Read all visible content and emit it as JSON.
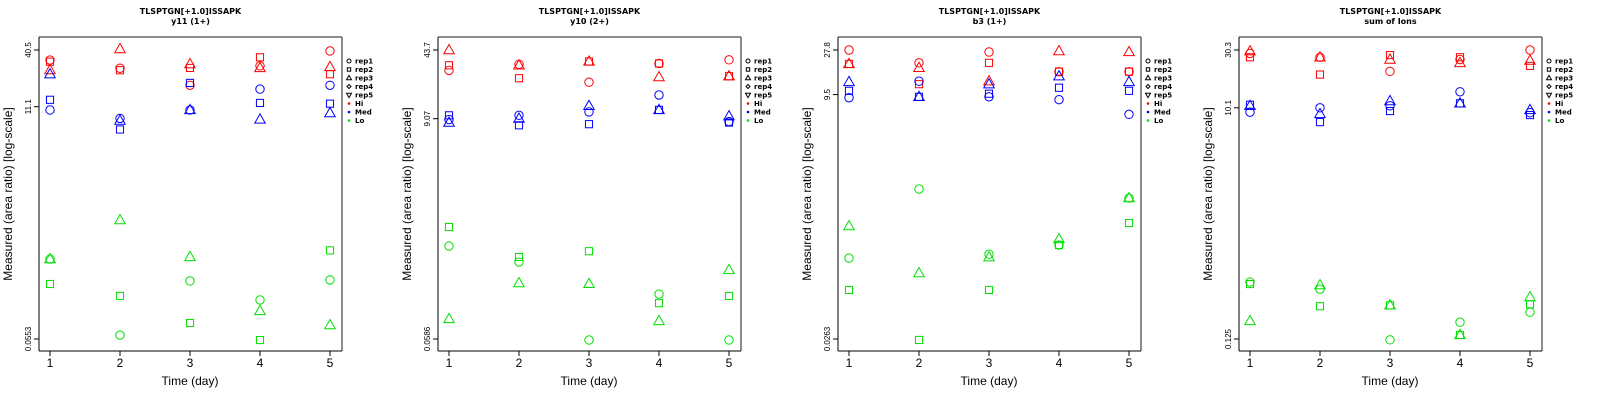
{
  "colors": {
    "Hi": "#ff0000",
    "Med": "#0000ff",
    "Lo": "#00e000"
  },
  "legend": {
    "reps": [
      {
        "label": "rep1",
        "shape": "circle"
      },
      {
        "label": "rep2",
        "shape": "square"
      },
      {
        "label": "rep3",
        "shape": "triangle"
      },
      {
        "label": "rep4",
        "shape": "diamond"
      },
      {
        "label": "rep5",
        "shape": "triangle-down"
      }
    ],
    "groups": [
      {
        "label": "Hi",
        "key": "Hi"
      },
      {
        "label": "Med",
        "key": "Med"
      },
      {
        "label": "Lo",
        "key": "Lo"
      }
    ]
  },
  "chart_data": [
    {
      "type": "scatter",
      "title": "TLSPTGN[+1.0]ISSAPK",
      "subtitle": "y11 (1+)",
      "xlabel": "Time (day)",
      "ylabel": "Measured (area ratio) [log-scale]",
      "yscale": "log",
      "x_ticks": [
        "1",
        "2",
        "3",
        "4",
        "5"
      ],
      "y_ticks": [
        {
          "value": 40.5,
          "label": "40.5"
        },
        {
          "value": 11.1,
          "label": "11.1"
        },
        {
          "value": 0.0553,
          "label": "0.0553"
        }
      ],
      "legend_position": "right",
      "series": [
        {
          "group": "Hi",
          "rep": "rep1",
          "shape": "circle",
          "x": [
            1,
            2,
            3,
            4,
            5
          ],
          "y": [
            32.2,
            26.7,
            18.1,
            28.2,
            39.6
          ]
        },
        {
          "group": "Hi",
          "rep": "rep2",
          "shape": "square",
          "x": [
            1,
            2,
            3,
            4,
            5
          ],
          "y": [
            31.0,
            25.5,
            26.9,
            34.3,
            23.3
          ]
        },
        {
          "group": "Hi",
          "rep": "rep3",
          "shape": "triangle",
          "x": [
            1,
            2,
            3,
            4,
            5
          ],
          "y": [
            25.6,
            41.4,
            29.4,
            26.9,
            27.5
          ]
        },
        {
          "group": "Med",
          "rep": "rep1",
          "shape": "circle",
          "x": [
            1,
            2,
            3,
            4,
            5
          ],
          "y": [
            10.3,
            8.5,
            10.3,
            16.6,
            18.1
          ]
        },
        {
          "group": "Med",
          "rep": "rep2",
          "shape": "square",
          "x": [
            1,
            2,
            3,
            4,
            5
          ],
          "y": [
            13.0,
            6.6,
            19.1,
            12.1,
            11.9
          ]
        },
        {
          "group": "Med",
          "rep": "rep3",
          "shape": "triangle",
          "x": [
            1,
            2,
            3,
            4,
            5
          ],
          "y": [
            23.3,
            8.1,
            10.3,
            8.3,
            9.6
          ]
        },
        {
          "group": "Lo",
          "rep": "rep1",
          "shape": "circle",
          "x": [
            1,
            2,
            3,
            4,
            5
          ],
          "y": [
            0.343,
            0.0605,
            0.208,
            0.135,
            0.213
          ]
        },
        {
          "group": "Lo",
          "rep": "rep2",
          "shape": "square",
          "x": [
            1,
            2,
            3,
            4,
            5
          ],
          "y": [
            0.194,
            0.148,
            0.0797,
            0.054,
            0.418
          ]
        },
        {
          "group": "Lo",
          "rep": "rep3",
          "shape": "triangle",
          "x": [
            1,
            2,
            3,
            4,
            5
          ],
          "y": [
            0.343,
            0.836,
            0.36,
            0.105,
            0.0761
          ]
        }
      ]
    },
    {
      "type": "scatter",
      "title": "TLSPTGN[+1.0]ISSAPK",
      "subtitle": "y10 (2+)",
      "xlabel": "Time (day)",
      "ylabel": "Measured (area ratio) [log-scale]",
      "yscale": "log",
      "x_ticks": [
        "1",
        "2",
        "3",
        "4",
        "5"
      ],
      "y_ticks": [
        {
          "value": 43.7,
          "label": "43.7"
        },
        {
          "value": 9.07,
          "label": "9.07"
        },
        {
          "value": 0.0586,
          "label": "0.0586"
        }
      ],
      "legend_position": "right",
      "series": [
        {
          "group": "Hi",
          "rep": "rep1",
          "shape": "circle",
          "x": [
            1,
            2,
            3,
            4,
            5
          ],
          "y": [
            27.4,
            31.5,
            20.9,
            32.1,
            34.9
          ]
        },
        {
          "group": "Hi",
          "rep": "rep2",
          "shape": "square",
          "x": [
            1,
            2,
            3,
            4,
            5
          ],
          "y": [
            30.8,
            22.9,
            33.6,
            32.1,
            24.0
          ]
        },
        {
          "group": "Hi",
          "rep": "rep3",
          "shape": "triangle",
          "x": [
            1,
            2,
            3,
            4,
            5
          ],
          "y": [
            43.7,
            30.8,
            33.6,
            23.5,
            24.0
          ]
        },
        {
          "group": "Med",
          "rep": "rep1",
          "shape": "circle",
          "x": [
            1,
            2,
            3,
            4,
            5
          ],
          "y": [
            8.9,
            9.8,
            10.6,
            15.6,
            8.5
          ]
        },
        {
          "group": "Med",
          "rep": "rep2",
          "shape": "square",
          "x": [
            1,
            2,
            3,
            4,
            5
          ],
          "y": [
            9.8,
            7.8,
            8.0,
            11.1,
            8.3
          ]
        },
        {
          "group": "Med",
          "rep": "rep3",
          "shape": "triangle",
          "x": [
            1,
            2,
            3,
            4,
            5
          ],
          "y": [
            8.3,
            9.1,
            12.2,
            11.1,
            9.6
          ]
        },
        {
          "group": "Lo",
          "rep": "rep1",
          "shape": "circle",
          "x": [
            1,
            2,
            3,
            4,
            5
          ],
          "y": [
            0.492,
            0.341,
            0.0573,
            0.164,
            0.0573
          ]
        },
        {
          "group": "Lo",
          "rep": "rep2",
          "shape": "square",
          "x": [
            1,
            2,
            3,
            4,
            5
          ],
          "y": [
            0.76,
            0.383,
            0.437,
            0.133,
            0.157
          ]
        },
        {
          "group": "Lo",
          "rep": "rep3",
          "shape": "triangle",
          "x": [
            1,
            2,
            3,
            4,
            5
          ],
          "y": [
            0.0927,
            0.211,
            0.207,
            0.0886,
            0.285
          ]
        }
      ]
    },
    {
      "type": "scatter",
      "title": "TLSPTGN[+1.0]ISSAPK",
      "subtitle": "b3 (1+)",
      "xlabel": "Time (day)",
      "ylabel": "Measured (area ratio) [log-scale]",
      "yscale": "log",
      "x_ticks": [
        "1",
        "2",
        "3",
        "4",
        "5"
      ],
      "y_ticks": [
        {
          "value": 27.8,
          "label": "27.8"
        },
        {
          "value": 9.5,
          "label": "9.5"
        },
        {
          "value": 0.0263,
          "label": "0.0263"
        }
      ],
      "legend_position": "right",
      "series": [
        {
          "group": "Hi",
          "rep": "rep1",
          "shape": "circle",
          "x": [
            1,
            2,
            3,
            4,
            5
          ],
          "y": [
            27.8,
            20.4,
            26.5,
            16.5,
            16.5
          ]
        },
        {
          "group": "Hi",
          "rep": "rep2",
          "shape": "square",
          "x": [
            1,
            2,
            3,
            4,
            5
          ],
          "y": [
            19.9,
            12.2,
            20.4,
            16.5,
            16.5
          ]
        },
        {
          "group": "Hi",
          "rep": "rep3",
          "shape": "triangle",
          "x": [
            1,
            2,
            3,
            4,
            5
          ],
          "y": [
            19.9,
            18.1,
            13.1,
            27.1,
            26.5
          ]
        },
        {
          "group": "Med",
          "rep": "rep1",
          "shape": "circle",
          "x": [
            1,
            2,
            3,
            4,
            5
          ],
          "y": [
            8.8,
            13.1,
            9.0,
            8.4,
            5.9
          ]
        },
        {
          "group": "Med",
          "rep": "rep2",
          "shape": "square",
          "x": [
            1,
            2,
            3,
            4,
            5
          ],
          "y": [
            10.4,
            9.0,
            9.7,
            11.2,
            10.4
          ]
        },
        {
          "group": "Med",
          "rep": "rep3",
          "shape": "triangle",
          "x": [
            1,
            2,
            3,
            4,
            5
          ],
          "y": [
            12.9,
            9.0,
            12.2,
            14.8,
            12.9
          ]
        },
        {
          "group": "Lo",
          "rep": "rep1",
          "shape": "circle",
          "x": [
            1,
            2,
            3,
            4,
            5
          ],
          "y": [
            0.185,
            0.976,
            0.203,
            0.253,
            0.785
          ]
        },
        {
          "group": "Lo",
          "rep": "rep2",
          "shape": "square",
          "x": [
            1,
            2,
            3,
            4,
            5
          ],
          "y": [
            0.0857,
            0.0257,
            0.0857,
            0.253,
            0.43
          ]
        },
        {
          "group": "Lo",
          "rep": "rep3",
          "shape": "triangle",
          "x": [
            1,
            2,
            3,
            4,
            5
          ],
          "y": [
            0.4,
            0.129,
            0.189,
            0.292,
            0.785
          ]
        }
      ]
    },
    {
      "type": "scatter",
      "title": "TLSPTGN[+1.0]ISSAPK",
      "subtitle": "sum of Ions",
      "xlabel": "Time (day)",
      "ylabel": "Measured (area ratio) [log-scale]",
      "yscale": "log",
      "x_ticks": [
        "1",
        "2",
        "3",
        "4",
        "5"
      ],
      "y_ticks": [
        {
          "value": 30.3,
          "label": "30.3"
        },
        {
          "value": 10.1,
          "label": "10.1"
        },
        {
          "value": 0.125,
          "label": "0.125"
        }
      ],
      "legend_position": "right",
      "series": [
        {
          "group": "Hi",
          "rep": "rep1",
          "shape": "circle",
          "x": [
            1,
            2,
            3,
            4,
            5
          ],
          "y": [
            28.4,
            26.4,
            20.2,
            25.3,
            30.3
          ]
        },
        {
          "group": "Hi",
          "rep": "rep2",
          "shape": "square",
          "x": [
            1,
            2,
            3,
            4,
            5
          ],
          "y": [
            26.4,
            19.0,
            27.5,
            26.4,
            22.4
          ]
        },
        {
          "group": "Hi",
          "rep": "rep3",
          "shape": "triangle",
          "x": [
            1,
            2,
            3,
            4,
            5
          ],
          "y": [
            29.6,
            26.4,
            25.3,
            23.7,
            24.8
          ]
        },
        {
          "group": "Med",
          "rep": "rep1",
          "shape": "circle",
          "x": [
            1,
            2,
            3,
            4,
            5
          ],
          "y": [
            9.3,
            10.1,
            10.5,
            13.7,
            9.2
          ]
        },
        {
          "group": "Med",
          "rep": "rep2",
          "shape": "square",
          "x": [
            1,
            2,
            3,
            4,
            5
          ],
          "y": [
            10.7,
            7.7,
            9.5,
            11.0,
            8.8
          ]
        },
        {
          "group": "Med",
          "rep": "rep3",
          "shape": "triangle",
          "x": [
            1,
            2,
            3,
            4,
            5
          ],
          "y": [
            10.5,
            9.0,
            11.5,
            11.0,
            9.7
          ]
        },
        {
          "group": "Lo",
          "rep": "rep1",
          "shape": "circle",
          "x": [
            1,
            2,
            3,
            4,
            5
          ],
          "y": [
            0.369,
            0.322,
            0.123,
            0.172,
            0.208
          ]
        },
        {
          "group": "Lo",
          "rep": "rep2",
          "shape": "square",
          "x": [
            1,
            2,
            3,
            4,
            5
          ],
          "y": [
            0.355,
            0.233,
            0.237,
            0.135,
            0.242
          ]
        },
        {
          "group": "Lo",
          "rep": "rep3",
          "shape": "triangle",
          "x": [
            1,
            2,
            3,
            4,
            5
          ],
          "y": [
            0.176,
            0.348,
            0.237,
            0.135,
            0.277
          ]
        }
      ]
    }
  ]
}
